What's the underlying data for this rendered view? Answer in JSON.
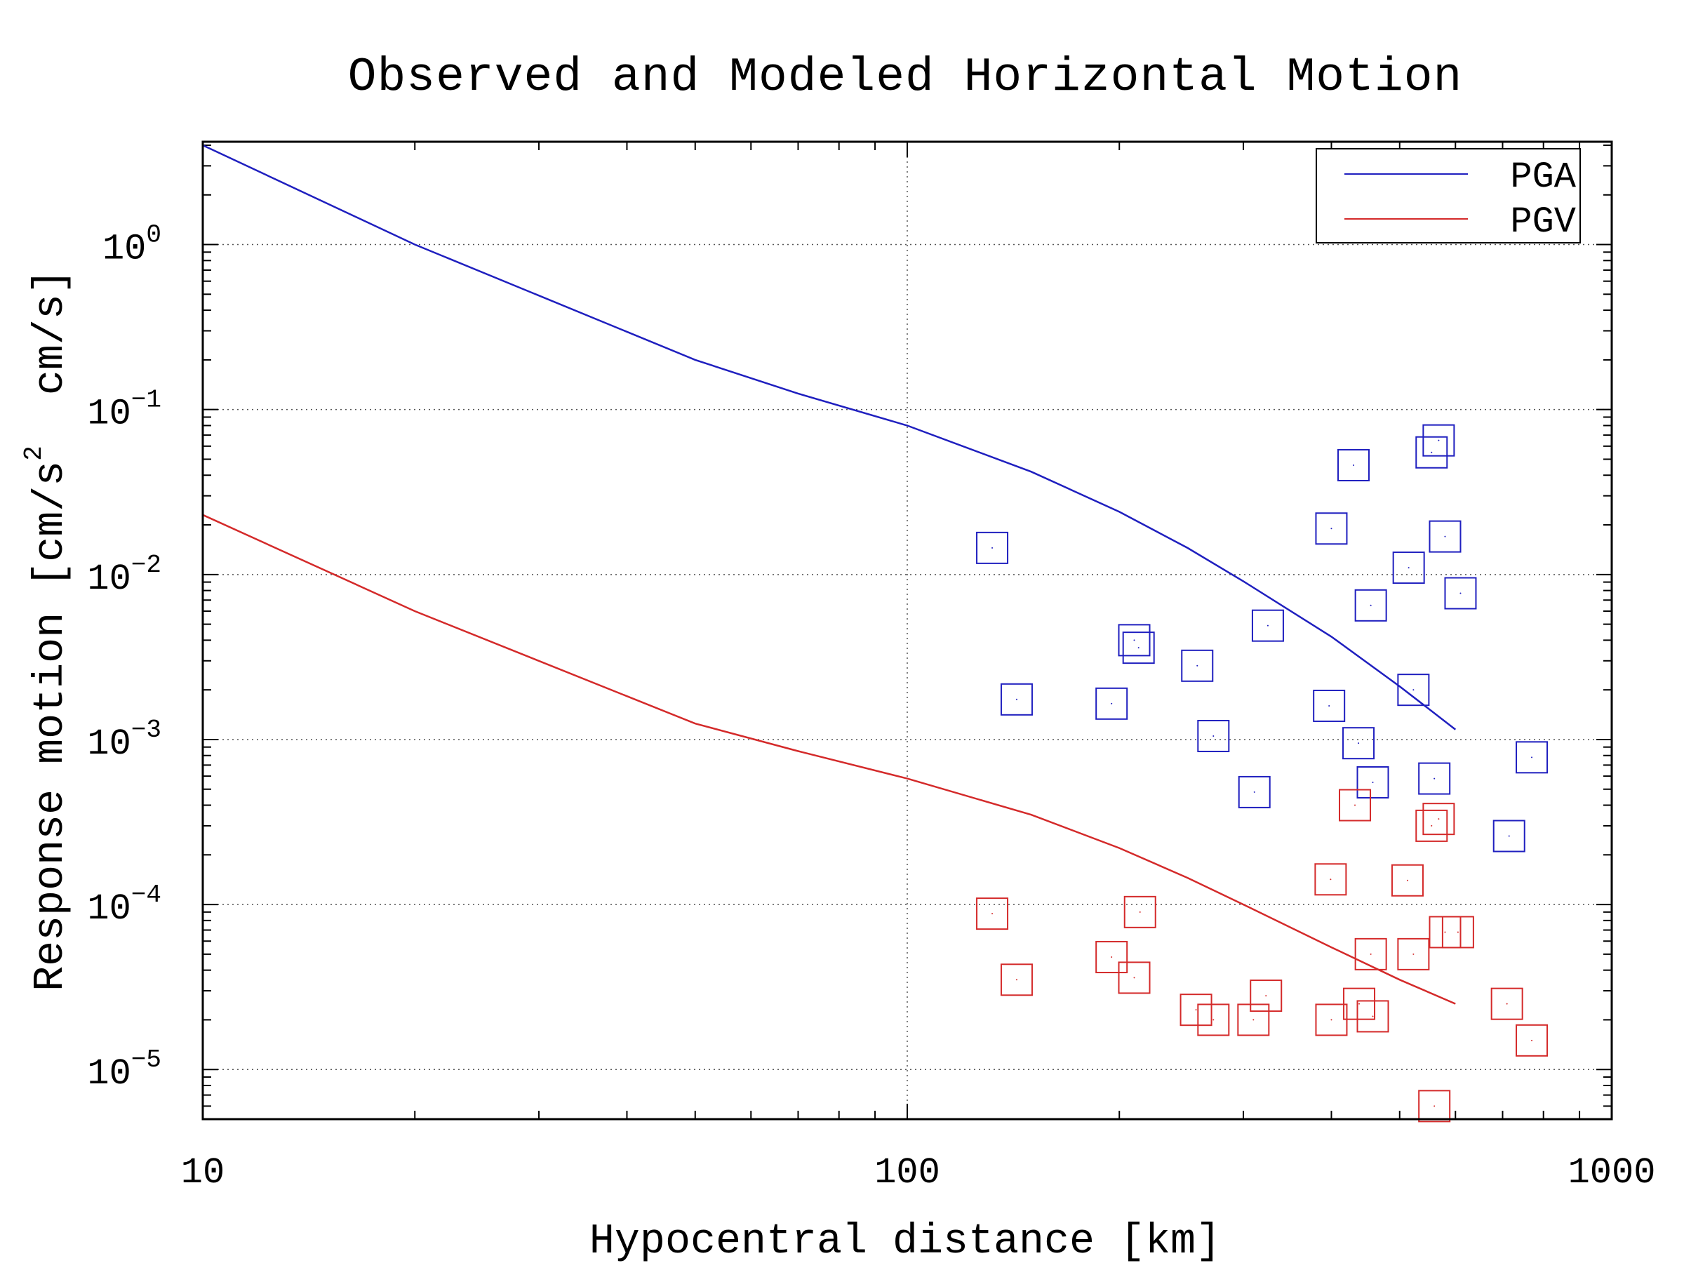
{
  "chart_data": {
    "type": "scatter",
    "title": "Observed and Modeled Horizontal Motion",
    "xlabel": "Hypocentral distance [km]",
    "ylabel": {
      "prefix": "Response motion [cm/s",
      "superscript": "2",
      "suffix": "  cm/s]"
    },
    "x_scale": "log",
    "y_scale": "log",
    "xlim": [
      10,
      1000
    ],
    "ylim": [
      5e-06,
      4.2
    ],
    "x_ticks": [
      {
        "value": 10,
        "label": "10"
      },
      {
        "value": 100,
        "label": "100"
      },
      {
        "value": 1000,
        "label": "1000"
      }
    ],
    "y_ticks": [
      {
        "value": 1,
        "base": "10",
        "exp": "0"
      },
      {
        "value": 0.1,
        "base": "10",
        "exp": "−1"
      },
      {
        "value": 0.01,
        "base": "10",
        "exp": "−2"
      },
      {
        "value": 0.001,
        "base": "10",
        "exp": "−3"
      },
      {
        "value": 0.0001,
        "base": "10",
        "exp": "−4"
      },
      {
        "value": 1e-05,
        "base": "10",
        "exp": "−5"
      }
    ],
    "grid": true,
    "legend_position": "top-right",
    "series": [
      {
        "name": "PGA",
        "color": "#1f1fbf",
        "model": {
          "x": [
            10,
            20,
            50,
            70,
            100,
            150,
            200,
            250,
            300,
            400,
            500,
            600
          ],
          "y": [
            4.0,
            1.0,
            0.2,
            0.125,
            0.08,
            0.042,
            0.024,
            0.0145,
            0.0091,
            0.0042,
            0.0021,
            0.00115
          ]
        },
        "observed": {
          "x": [
            132,
            143,
            195,
            210,
            213,
            258,
            272,
            311,
            325,
            397,
            400,
            430,
            437,
            455,
            458,
            515,
            523,
            555,
            560,
            568,
            580,
            610,
            715,
            770
          ],
          "y": [
            0.0145,
            0.00175,
            0.00165,
            0.004,
            0.0036,
            0.0028,
            0.00105,
            0.00048,
            0.0049,
            0.0016,
            0.019,
            0.046,
            0.00095,
            0.0065,
            0.00055,
            0.011,
            0.002,
            0.055,
            0.00058,
            0.065,
            0.017,
            0.0077,
            0.00026,
            0.00078
          ]
        }
      },
      {
        "name": "PGV",
        "color": "#d42a2a",
        "model": {
          "x": [
            10,
            20,
            50,
            70,
            100,
            150,
            200,
            250,
            300,
            400,
            500,
            600
          ],
          "y": [
            0.023,
            0.006,
            0.00125,
            0.00085,
            0.00058,
            0.00035,
            0.00022,
            0.000145,
            0.0001,
            5.5e-05,
            3.5e-05,
            2.5e-05
          ]
        },
        "observed": {
          "x": [
            132,
            143,
            195,
            210,
            214,
            257,
            272,
            310,
            323,
            399,
            400,
            432,
            438,
            455,
            458,
            513,
            523,
            555,
            560,
            568,
            580,
            605,
            710,
            770
          ],
          "y": [
            8.8e-05,
            3.5e-05,
            4.8e-05,
            3.6e-05,
            9e-05,
            2.3e-05,
            2e-05,
            2e-05,
            2.8e-05,
            0.000142,
            2e-05,
            0.0004,
            2.5e-05,
            5e-05,
            2.1e-05,
            0.00014,
            5e-05,
            0.0003,
            6e-06,
            0.00033,
            6.8e-05,
            6.8e-05,
            2.5e-05,
            1.5e-05
          ]
        }
      }
    ]
  }
}
